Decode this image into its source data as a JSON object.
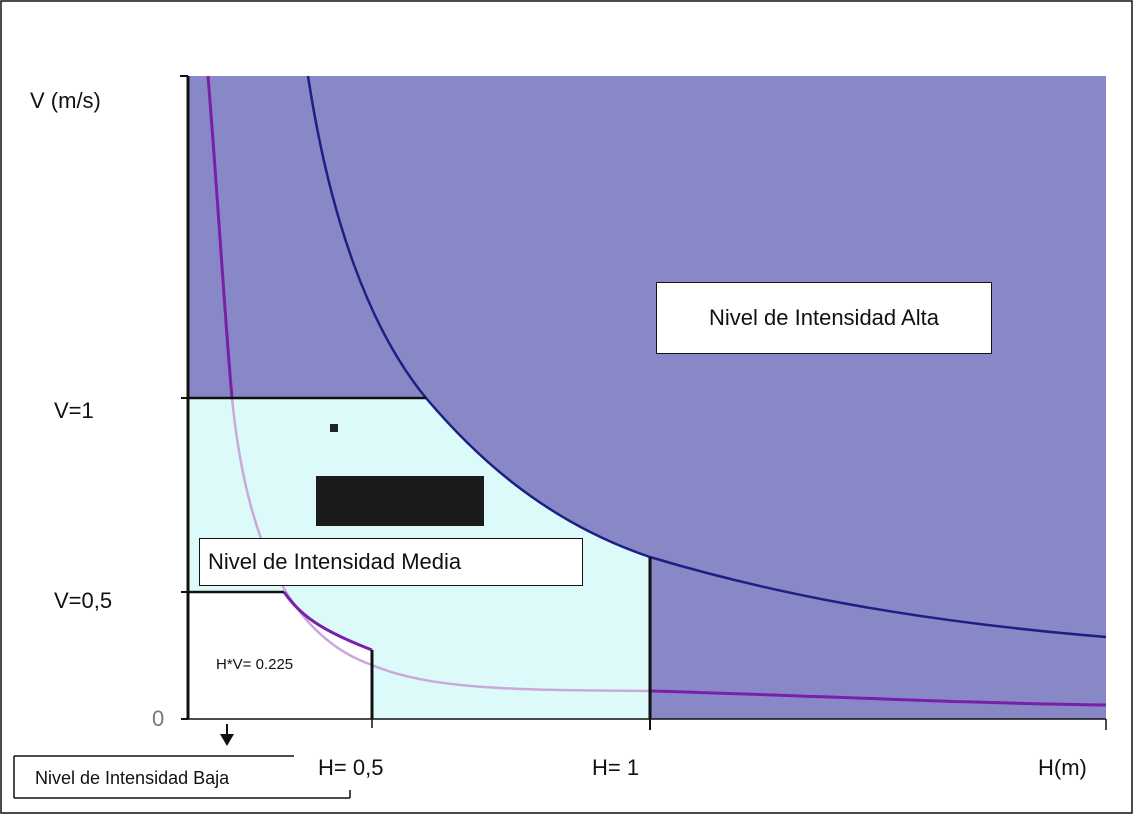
{
  "axes": {
    "y_label": "V (m/s)",
    "x_label": "H(m)",
    "y_ticks": [
      "V=1",
      "V=0,5",
      "0"
    ],
    "x_ticks": [
      "H= 0,5",
      "H= 1"
    ]
  },
  "regions": {
    "high_label": "Nivel de Intensidad Alta",
    "medium_label": "Nivel de Intensidad Media",
    "low_label": "Nivel de Intensidad Baja"
  },
  "annotations": {
    "product_threshold": "H*V= 0.225"
  },
  "colors": {
    "high_fill": "#8888c6",
    "medium_fill": "#ddfafa",
    "low_fill": "#ffffff",
    "blue_curve": "#1c1f84",
    "purple_curve": "#7a1fa8",
    "purple_curve_light": "#c9a8dc",
    "boundary": "#111111"
  }
}
